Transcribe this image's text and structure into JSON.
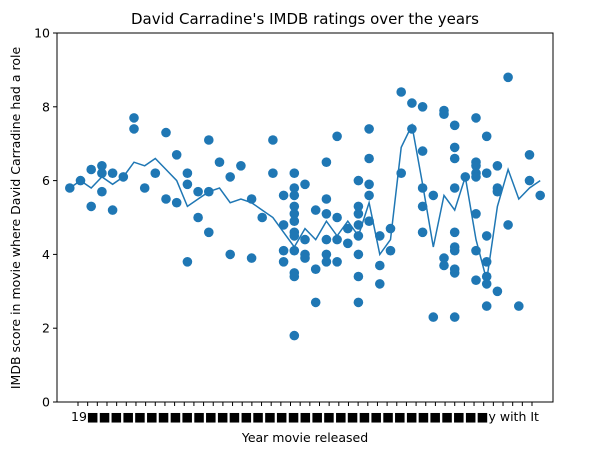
{
  "chart_data": {
    "type": "scatter",
    "title": "David Carradine's IMDB ratings over the years",
    "xlabel": "Year movie released",
    "ylabel": "IMDB score in movie where David Carradine had a role",
    "ylim": [
      0,
      10
    ],
    "yticks": [
      0,
      2,
      4,
      6,
      8,
      10
    ],
    "grid": false,
    "legend": "none",
    "x_tick_text": "19■■■■■■■■■■■■■■■■■■■■■■■■■■■■■■■■■■y with It",
    "x_tick_count": 48,
    "series": [
      {
        "kind": "scatter",
        "color": "#1f77b4",
        "points": [
          [
            0,
            5.8
          ],
          [
            1,
            6.0
          ],
          [
            2,
            6.3
          ],
          [
            2,
            5.3
          ],
          [
            3,
            6.4
          ],
          [
            3,
            6.2
          ],
          [
            3,
            5.7
          ],
          [
            4,
            6.2
          ],
          [
            4,
            5.2
          ],
          [
            5,
            6.1
          ],
          [
            6,
            7.7
          ],
          [
            6,
            7.4
          ],
          [
            7,
            5.8
          ],
          [
            8,
            6.2
          ],
          [
            9,
            7.3
          ],
          [
            9,
            5.5
          ],
          [
            10,
            6.7
          ],
          [
            10,
            5.4
          ],
          [
            11,
            6.2
          ],
          [
            11,
            5.9
          ],
          [
            11,
            3.8
          ],
          [
            12,
            5.7
          ],
          [
            12,
            5.0
          ],
          [
            13,
            7.1
          ],
          [
            13,
            5.7
          ],
          [
            13,
            4.6
          ],
          [
            14,
            6.5
          ],
          [
            15,
            6.1
          ],
          [
            15,
            4.0
          ],
          [
            16,
            6.4
          ],
          [
            17,
            5.5
          ],
          [
            17,
            3.9
          ],
          [
            18,
            5.0
          ],
          [
            19,
            7.1
          ],
          [
            19,
            6.2
          ],
          [
            20,
            5.6
          ],
          [
            20,
            4.8
          ],
          [
            20,
            4.1
          ],
          [
            20,
            3.8
          ],
          [
            21,
            6.2
          ],
          [
            21,
            5.8
          ],
          [
            21,
            5.6
          ],
          [
            21,
            5.3
          ],
          [
            21,
            5.1
          ],
          [
            21,
            4.9
          ],
          [
            21,
            4.6
          ],
          [
            21,
            4.5
          ],
          [
            21,
            4.1
          ],
          [
            21,
            3.5
          ],
          [
            21,
            3.4
          ],
          [
            21,
            1.8
          ],
          [
            22,
            5.9
          ],
          [
            22,
            4.4
          ],
          [
            22,
            4.0
          ],
          [
            22,
            3.9
          ],
          [
            23,
            5.2
          ],
          [
            23,
            3.6
          ],
          [
            23,
            2.7
          ],
          [
            24,
            6.5
          ],
          [
            24,
            5.5
          ],
          [
            24,
            5.1
          ],
          [
            24,
            4.4
          ],
          [
            24,
            3.8
          ],
          [
            24,
            4.0
          ],
          [
            25,
            7.2
          ],
          [
            25,
            5.0
          ],
          [
            25,
            4.4
          ],
          [
            25,
            3.8
          ],
          [
            26,
            4.7
          ],
          [
            26,
            4.3
          ],
          [
            27,
            6.0
          ],
          [
            27,
            5.3
          ],
          [
            27,
            5.1
          ],
          [
            27,
            4.8
          ],
          [
            27,
            4.5
          ],
          [
            27,
            4.0
          ],
          [
            27,
            3.4
          ],
          [
            27,
            2.7
          ],
          [
            28,
            7.4
          ],
          [
            28,
            5.9
          ],
          [
            28,
            5.6
          ],
          [
            28,
            6.6
          ],
          [
            28,
            4.9
          ],
          [
            29,
            4.5
          ],
          [
            29,
            3.7
          ],
          [
            29,
            3.2
          ],
          [
            30,
            4.7
          ],
          [
            30,
            4.1
          ],
          [
            31,
            8.4
          ],
          [
            31,
            6.2
          ],
          [
            32,
            8.1
          ],
          [
            32,
            7.4
          ],
          [
            33,
            8.0
          ],
          [
            33,
            6.8
          ],
          [
            33,
            5.8
          ],
          [
            33,
            5.3
          ],
          [
            33,
            4.6
          ],
          [
            34,
            5.6
          ],
          [
            34,
            2.3
          ],
          [
            35,
            7.9
          ],
          [
            35,
            7.8
          ],
          [
            35,
            3.9
          ],
          [
            35,
            3.7
          ],
          [
            36,
            7.5
          ],
          [
            36,
            6.9
          ],
          [
            36,
            6.6
          ],
          [
            36,
            5.8
          ],
          [
            36,
            4.6
          ],
          [
            36,
            4.2
          ],
          [
            36,
            4.1
          ],
          [
            36,
            3.6
          ],
          [
            36,
            3.5
          ],
          [
            36,
            2.3
          ],
          [
            37,
            6.1
          ],
          [
            38,
            7.7
          ],
          [
            38,
            6.5
          ],
          [
            38,
            6.4
          ],
          [
            38,
            6.2
          ],
          [
            38,
            6.1
          ],
          [
            38,
            5.1
          ],
          [
            38,
            4.1
          ],
          [
            38,
            3.3
          ],
          [
            39,
            7.2
          ],
          [
            39,
            6.2
          ],
          [
            39,
            4.5
          ],
          [
            39,
            3.8
          ],
          [
            39,
            3.4
          ],
          [
            39,
            3.2
          ],
          [
            39,
            2.6
          ],
          [
            40,
            6.4
          ],
          [
            40,
            5.8
          ],
          [
            40,
            5.7
          ],
          [
            40,
            3.0
          ],
          [
            41,
            8.8
          ],
          [
            41,
            4.8
          ],
          [
            42,
            2.6
          ],
          [
            43,
            6.7
          ],
          [
            43,
            6.0
          ],
          [
            44,
            5.6
          ]
        ]
      },
      {
        "kind": "line",
        "color": "#1f77b4",
        "points": [
          [
            0,
            5.8
          ],
          [
            1,
            6.0
          ],
          [
            2,
            5.8
          ],
          [
            3,
            6.1
          ],
          [
            4,
            5.9
          ],
          [
            5,
            6.1
          ],
          [
            6,
            6.5
          ],
          [
            7,
            6.4
          ],
          [
            8,
            6.6
          ],
          [
            9,
            6.3
          ],
          [
            10,
            6.0
          ],
          [
            11,
            5.3
          ],
          [
            12,
            5.5
          ],
          [
            13,
            5.7
          ],
          [
            14,
            5.8
          ],
          [
            15,
            5.4
          ],
          [
            16,
            5.5
          ],
          [
            17,
            5.4
          ],
          [
            18,
            5.2
          ],
          [
            19,
            5.0
          ],
          [
            20,
            4.6
          ],
          [
            21,
            4.2
          ],
          [
            22,
            4.7
          ],
          [
            23,
            4.4
          ],
          [
            24,
            4.9
          ],
          [
            25,
            4.5
          ],
          [
            26,
            4.9
          ],
          [
            27,
            4.5
          ],
          [
            28,
            5.4
          ],
          [
            29,
            4.0
          ],
          [
            30,
            4.4
          ],
          [
            31,
            6.9
          ],
          [
            32,
            7.5
          ],
          [
            33,
            5.9
          ],
          [
            34,
            4.2
          ],
          [
            35,
            5.6
          ],
          [
            36,
            5.2
          ],
          [
            37,
            6.1
          ],
          [
            38,
            4.4
          ],
          [
            39,
            3.3
          ],
          [
            40,
            5.3
          ],
          [
            41,
            6.3
          ],
          [
            42,
            5.5
          ],
          [
            43,
            5.8
          ],
          [
            44,
            6.0
          ]
        ]
      }
    ]
  }
}
